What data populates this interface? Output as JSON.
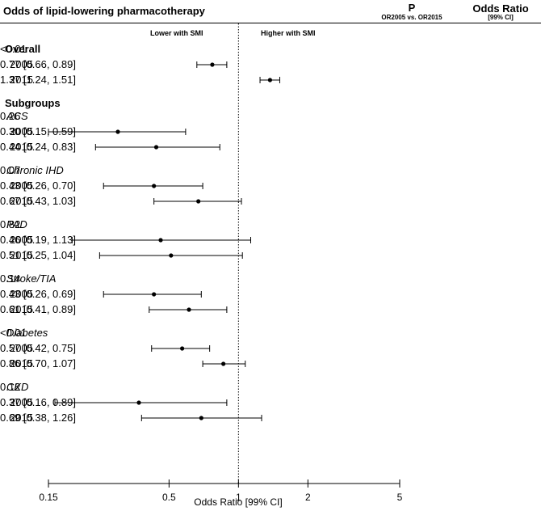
{
  "header": {
    "title": "Odds of lipid-lowering pharmacotherapy",
    "p_label": "P",
    "p_sublabel": "OR2005 vs. OR2015",
    "or_label": "Odds Ratio",
    "or_sublabel": "[99% CI]",
    "lower_label": "Lower with SMI",
    "higher_label": "Higher with SMI"
  },
  "chart_data": {
    "type": "forest",
    "xlabel": "Odds Ratio [99% CI]",
    "xscale": "log",
    "xlim": [
      0.15,
      5
    ],
    "xticks": [
      0.15,
      0.5,
      1,
      2,
      5
    ],
    "xtick_labels": [
      "0.15",
      "0.5",
      "1",
      "2",
      "5"
    ],
    "reference_line": 1,
    "sections": [
      {
        "label": "Overall",
        "style": "section",
        "p": "<0.01",
        "rows": [
          {
            "label": "2005",
            "or": 0.77,
            "lo": 0.66,
            "hi": 0.89,
            "text": "0.77 [0.66, 0.89]"
          },
          {
            "label": "2015",
            "or": 1.37,
            "lo": 1.24,
            "hi": 1.51,
            "text": "1.37 [1.24, 1.51]"
          }
        ]
      },
      {
        "label": "Subgroups",
        "style": "section",
        "p": "",
        "rows": []
      },
      {
        "label": "ACS",
        "style": "group",
        "p": "0.26",
        "rows": [
          {
            "label": "2005",
            "or": 0.3,
            "lo": 0.15,
            "hi": 0.59,
            "text": "0.30 [0.15, 0.59]"
          },
          {
            "label": "2015",
            "or": 0.44,
            "lo": 0.24,
            "hi": 0.83,
            "text": "0.44 [0.24, 0.83]"
          }
        ]
      },
      {
        "label": "Chronic IHD",
        "style": "group",
        "p": "0.07",
        "rows": [
          {
            "label": "2005",
            "or": 0.43,
            "lo": 0.26,
            "hi": 0.7,
            "text": "0.43 [0.26, 0.70]"
          },
          {
            "label": "2015",
            "or": 0.67,
            "lo": 0.43,
            "hi": 1.03,
            "text": "0.67 [0.43, 1.03]"
          }
        ]
      },
      {
        "label": "PAD",
        "style": "group",
        "p": "0.82",
        "rows": [
          {
            "label": "2005",
            "or": 0.46,
            "lo": 0.19,
            "hi": 1.13,
            "text": "0.46 [0.19, 1.13]"
          },
          {
            "label": "2015",
            "or": 0.51,
            "lo": 0.25,
            "hi": 1.04,
            "text": "0.51 [0.25, 1.04]"
          }
        ]
      },
      {
        "label": "Stroke/TIA",
        "style": "group",
        "p": "0.14",
        "rows": [
          {
            "label": "2005",
            "or": 0.43,
            "lo": 0.26,
            "hi": 0.69,
            "text": "0.43 [0.26, 0.69]"
          },
          {
            "label": "2015",
            "or": 0.61,
            "lo": 0.41,
            "hi": 0.89,
            "text": "0.61 [0.41, 0.89]"
          }
        ]
      },
      {
        "label": "Diabetes",
        "style": "group",
        "p": "<0.01",
        "rows": [
          {
            "label": "2005",
            "or": 0.57,
            "lo": 0.42,
            "hi": 0.75,
            "text": "0.57 [0.42, 0.75]"
          },
          {
            "label": "2015",
            "or": 0.86,
            "lo": 0.7,
            "hi": 1.07,
            "text": "0.86 [0.70, 1.07]"
          }
        ]
      },
      {
        "label": "CKD",
        "style": "group",
        "p": "0.12",
        "rows": [
          {
            "label": "2005",
            "or": 0.37,
            "lo": 0.16,
            "hi": 0.89,
            "text": "0.37 [0.16, 0.89]"
          },
          {
            "label": "2015",
            "or": 0.69,
            "lo": 0.38,
            "hi": 1.26,
            "text": "0.69 [0.38, 1.26]"
          }
        ]
      }
    ]
  }
}
